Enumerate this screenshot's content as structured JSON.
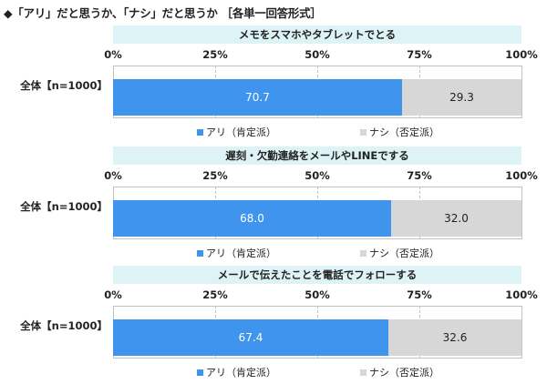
{
  "heading": "◆「アリ」だと思うか、「ナシ」だと思うか ［各単一回答形式］",
  "colors": {
    "yes": "#3f94ee",
    "no": "#d7d7d7",
    "subtitle_bg": "#ddf3f6",
    "grid": "#b9c4c6"
  },
  "chart_data": [
    {
      "type": "bar",
      "orientation": "horizontal",
      "stacked": true,
      "title": "メモをスマホやタブレットでとる",
      "categories": [
        "全体【n=1000】"
      ],
      "series": [
        {
          "name": "アリ（肯定派）",
          "values": [
            70.7
          ]
        },
        {
          "name": "ナシ（否定派）",
          "values": [
            29.3
          ]
        }
      ],
      "ticks": [
        "0%",
        "25%",
        "50%",
        "75%",
        "100%"
      ],
      "xlim": [
        0,
        100
      ],
      "legend": "bottom"
    },
    {
      "type": "bar",
      "orientation": "horizontal",
      "stacked": true,
      "title": "遅刻・欠勤連絡をメールやLINEでする",
      "categories": [
        "全体【n=1000】"
      ],
      "series": [
        {
          "name": "アリ（肯定派）",
          "values": [
            68.0
          ]
        },
        {
          "name": "ナシ（否定派）",
          "values": [
            32.0
          ]
        }
      ],
      "ticks": [
        "0%",
        "25%",
        "50%",
        "75%",
        "100%"
      ],
      "xlim": [
        0,
        100
      ],
      "legend": "bottom"
    },
    {
      "type": "bar",
      "orientation": "horizontal",
      "stacked": true,
      "title": "メールで伝えたことを電話でフォローする",
      "categories": [
        "全体【n=1000】"
      ],
      "series": [
        {
          "name": "アリ（肯定派）",
          "values": [
            67.4
          ]
        },
        {
          "name": "ナシ（否定派）",
          "values": [
            32.6
          ]
        }
      ],
      "ticks": [
        "0%",
        "25%",
        "50%",
        "75%",
        "100%"
      ],
      "xlim": [
        0,
        100
      ],
      "legend": "bottom"
    }
  ]
}
